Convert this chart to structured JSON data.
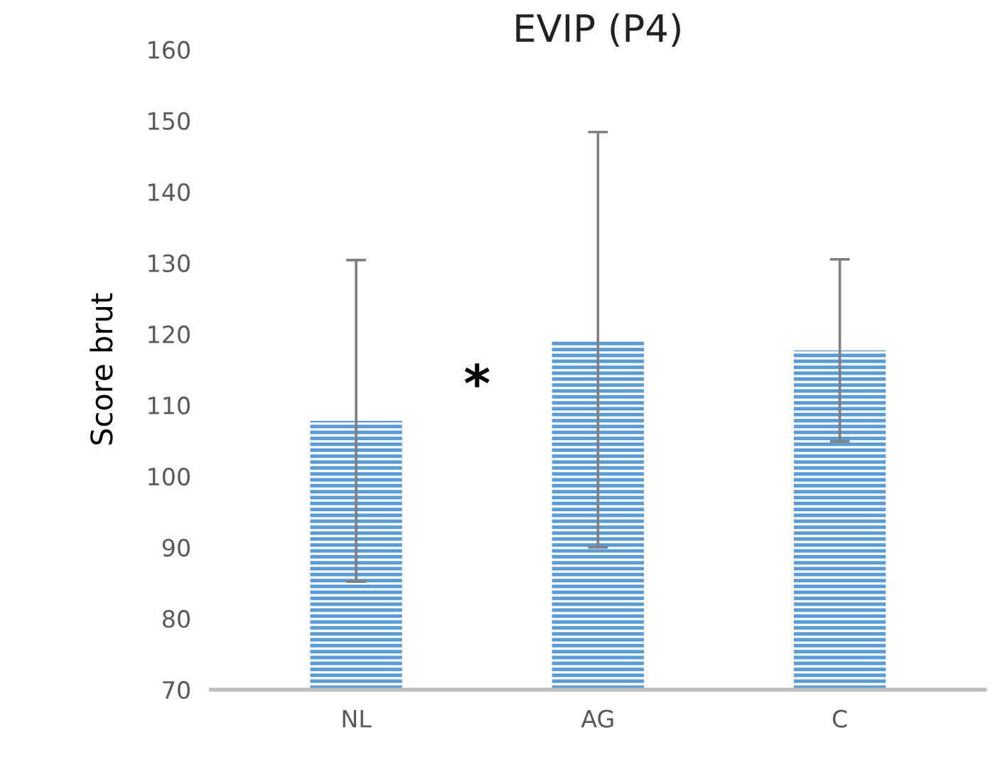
{
  "chart_data": {
    "type": "bar",
    "title": "EVIP (P4)",
    "ylabel": "Score brut",
    "categories": [
      "NL",
      "AG",
      "C"
    ],
    "series": [
      {
        "color": "#5b9bd5",
        "values": [
          107.8,
          119.2,
          117.7
        ],
        "errors": [
          22.6,
          29.2,
          12.8
        ]
      }
    ],
    "ylim": [
      70,
      160
    ],
    "yticks": [
      70,
      80,
      90,
      100,
      110,
      120,
      130,
      140,
      150,
      160
    ],
    "annotations": [
      "*"
    ],
    "grid": false,
    "legend": false
  }
}
